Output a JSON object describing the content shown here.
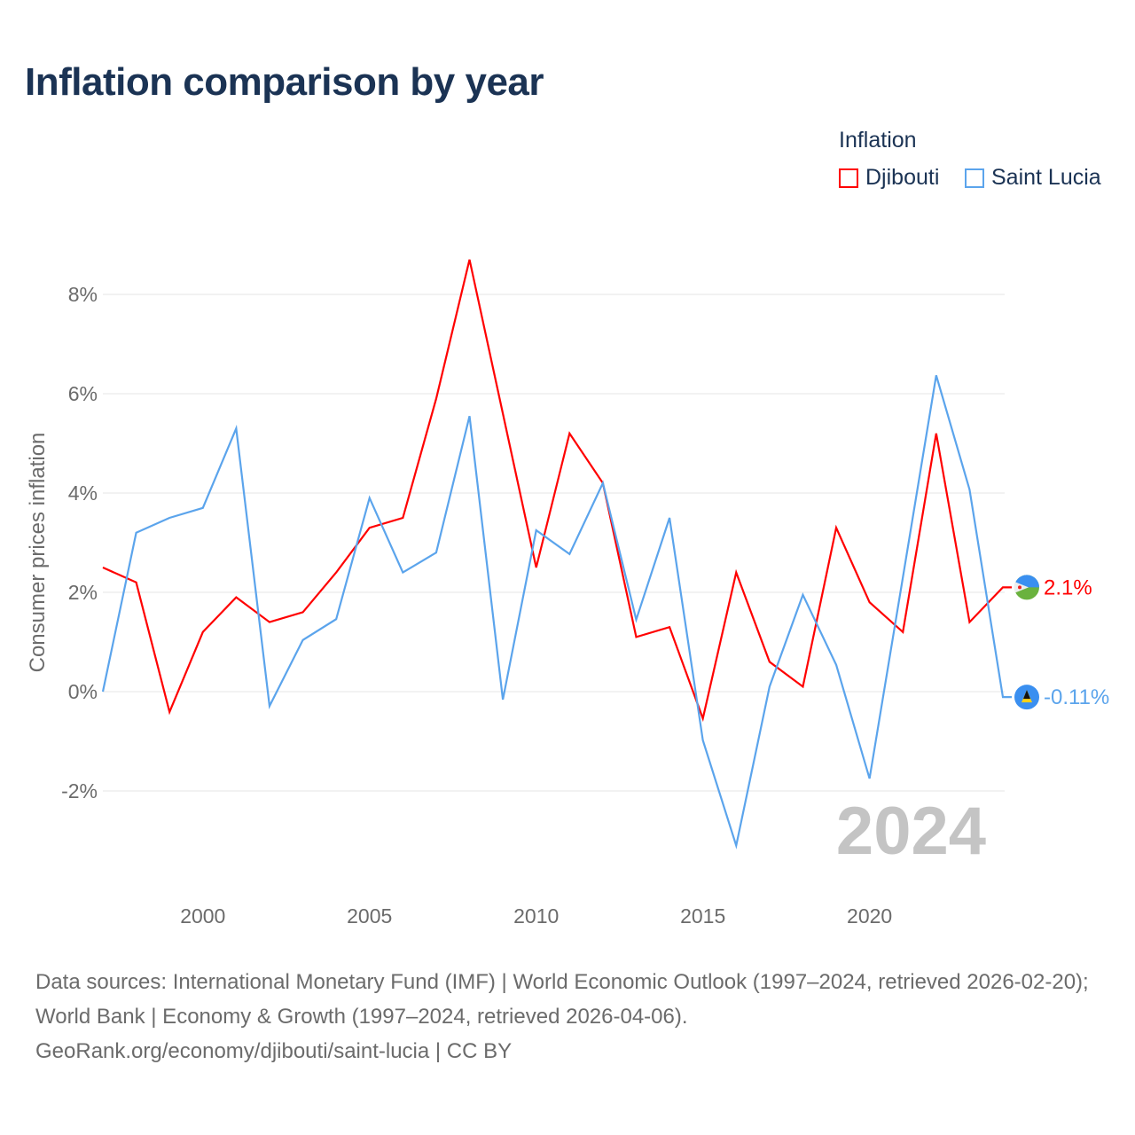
{
  "chart_data": {
    "type": "line",
    "title": "Inflation comparison by year",
    "legend_title": "Inflation",
    "legend_placement": "top-right",
    "ylabel": "Consumer prices inflation",
    "xlabel": "",
    "x": [
      1997,
      1998,
      1999,
      2000,
      2001,
      2002,
      2003,
      2004,
      2005,
      2006,
      2007,
      2008,
      2009,
      2010,
      2011,
      2012,
      2013,
      2014,
      2015,
      2016,
      2017,
      2018,
      2019,
      2020,
      2021,
      2022,
      2023,
      2024
    ],
    "xlim": [
      1997,
      2024
    ],
    "ylim": [
      -3.8,
      9.6
    ],
    "x_ticks": [
      2000,
      2005,
      2010,
      2015,
      2020
    ],
    "x_tick_labels": [
      "2000",
      "2005",
      "2010",
      "2015",
      "2020"
    ],
    "y_ticks": [
      -2,
      0,
      2,
      4,
      6,
      8
    ],
    "y_tick_labels": [
      "-2%",
      "0%",
      "2%",
      "4%",
      "6%",
      "8%"
    ],
    "grid": true,
    "series": [
      {
        "name": "Djibouti",
        "color": "#ff0000",
        "end_label": "2.1%",
        "values": [
          2.5,
          2.2,
          -0.41,
          1.2,
          1.9,
          1.4,
          1.6,
          2.4,
          3.3,
          3.5,
          5.9,
          8.7,
          5.6,
          2.5,
          5.2,
          4.2,
          1.1,
          1.3,
          -0.54,
          2.4,
          0.6,
          0.1,
          3.3,
          1.8,
          1.2,
          5.2,
          1.4,
          2.1
        ]
      },
      {
        "name": "Saint Lucia",
        "color": "#5ba4ec",
        "end_label": "-0.11%",
        "values": [
          0.0,
          3.2,
          3.5,
          3.7,
          5.3,
          -0.29,
          1.04,
          1.46,
          3.9,
          2.4,
          2.8,
          5.55,
          -0.16,
          3.25,
          2.77,
          4.2,
          1.45,
          3.5,
          -0.98,
          -3.1,
          0.1,
          1.95,
          0.54,
          -1.75,
          2.3,
          6.37,
          4.07,
          -0.11
        ]
      }
    ],
    "annotation": "2024"
  },
  "footer": {
    "sources": "Data sources: International Monetary Fund (IMF) | World Economic Outlook (1997–2024, retrieved 2026-02-20); World Bank | Economy & Growth (1997–2024, retrieved 2026-04-06).",
    "credit": "GeoRank.org/economy/djibouti/saint-lucia | CC BY"
  }
}
